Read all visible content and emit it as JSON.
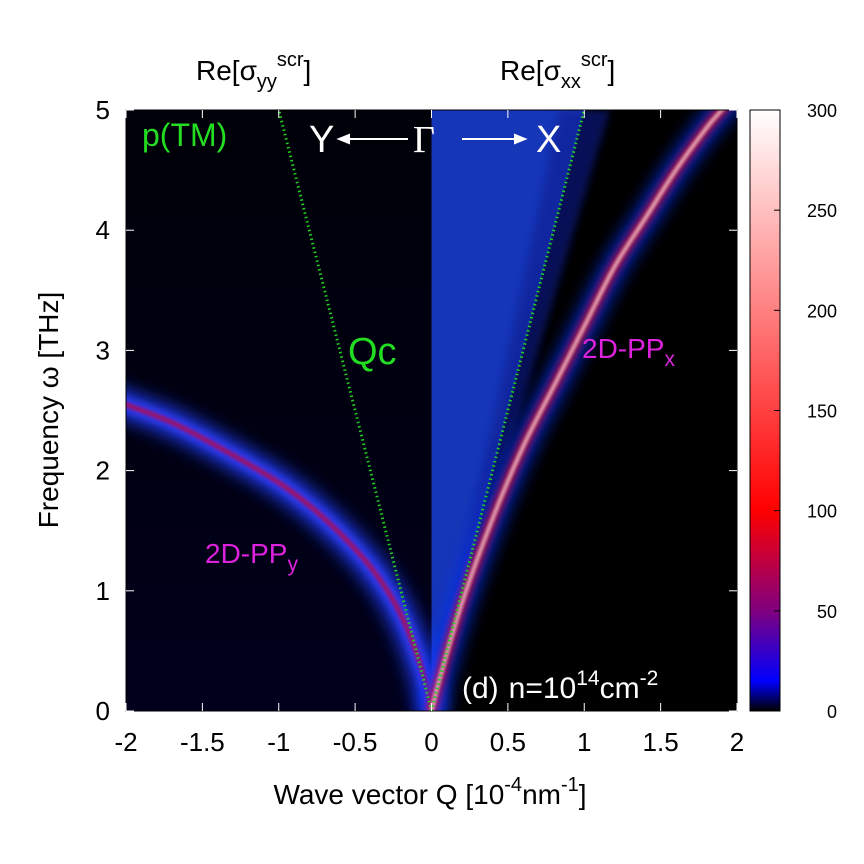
{
  "chart_data": {
    "type": "heatmap",
    "panel_label": "(d)",
    "density_label": "n=10",
    "density_exp": "14",
    "density_unit": "cm",
    "density_unit_exp": "-2",
    "left_title": {
      "prefix": "Re[",
      "sigma": "σ",
      "sub": "yy",
      "sup": "scr",
      "suffix": "]"
    },
    "right_title": {
      "prefix": "Re[",
      "sigma": "σ",
      "sub": "xx",
      "sup": "scr",
      "suffix": "]"
    },
    "xlabel_prefix": "Wave vector Q [10",
    "xlabel_exp1": "-4",
    "xlabel_mid": "nm",
    "xlabel_exp2": "-1",
    "xlabel_suffix": "]",
    "ylabel": "Frequency ω [THz]",
    "xlim": [
      -2,
      2
    ],
    "ylim": [
      0,
      5
    ],
    "x_ticks": [
      -2,
      -1.5,
      -1,
      -0.5,
      0,
      0.5,
      1,
      1.5,
      2
    ],
    "x_tick_labels": [
      "-2",
      "-1.5",
      "-1",
      "-0.5",
      "0",
      "0.5",
      "1",
      "1.5",
      "2"
    ],
    "y_ticks": [
      0,
      1,
      2,
      3,
      4,
      5
    ],
    "y_tick_labels": [
      "0",
      "1",
      "2",
      "3",
      "4",
      "5"
    ],
    "colorbar": {
      "range": [
        0,
        300
      ],
      "ticks": [
        0,
        50,
        100,
        150,
        200,
        250,
        300
      ],
      "tick_labels": [
        "0",
        "50",
        "100",
        "150",
        "200",
        "250",
        "300"
      ],
      "stops": [
        {
          "value": 0,
          "color": "#000000"
        },
        {
          "value": 15,
          "color": "#0000ff"
        },
        {
          "value": 50,
          "color": "#80007f"
        },
        {
          "value": 100,
          "color": "#ff0000"
        },
        {
          "value": 200,
          "color": "#ff8080"
        },
        {
          "value": 300,
          "color": "#ffffff"
        }
      ]
    },
    "annotations": {
      "mode": "p(TM)",
      "Y": "Y",
      "Gamma": "Γ",
      "X": "X",
      "Qc": "Qc",
      "ppy_base": "2D-PP",
      "ppy_sub": "y",
      "ppx_base": "2D-PP",
      "ppx_sub": "x"
    },
    "series": [
      {
        "name": "light line Qc (left)",
        "style": "dotted",
        "color": "#22cc22",
        "points": [
          [
            0,
            0
          ],
          [
            -1.0,
            5
          ]
        ]
      },
      {
        "name": "light line Qc (right)",
        "style": "dotted",
        "color": "#22cc22",
        "points": [
          [
            0,
            0
          ],
          [
            1.0,
            5
          ]
        ]
      },
      {
        "name": "2D-PPy plasmon (Re[σyy])",
        "peak_intensity": 100,
        "points": [
          [
            -0.05,
            0.3
          ],
          [
            -0.2,
            0.8
          ],
          [
            -0.4,
            1.2
          ],
          [
            -0.7,
            1.6
          ],
          [
            -1.0,
            1.9
          ],
          [
            -1.4,
            2.2
          ],
          [
            -1.7,
            2.4
          ],
          [
            -2.0,
            2.55
          ]
        ]
      },
      {
        "name": "2D-PPx plasmon (Re[σxx])",
        "peak_intensity": 300,
        "points": [
          [
            0.05,
            0.25
          ],
          [
            0.2,
            0.9
          ],
          [
            0.4,
            1.6
          ],
          [
            0.6,
            2.2
          ],
          [
            0.8,
            2.7
          ],
          [
            1.0,
            3.2
          ],
          [
            1.2,
            3.7
          ],
          [
            1.4,
            4.1
          ],
          [
            1.6,
            4.5
          ],
          [
            1.8,
            4.85
          ],
          [
            1.9,
            5.0
          ]
        ]
      }
    ]
  }
}
